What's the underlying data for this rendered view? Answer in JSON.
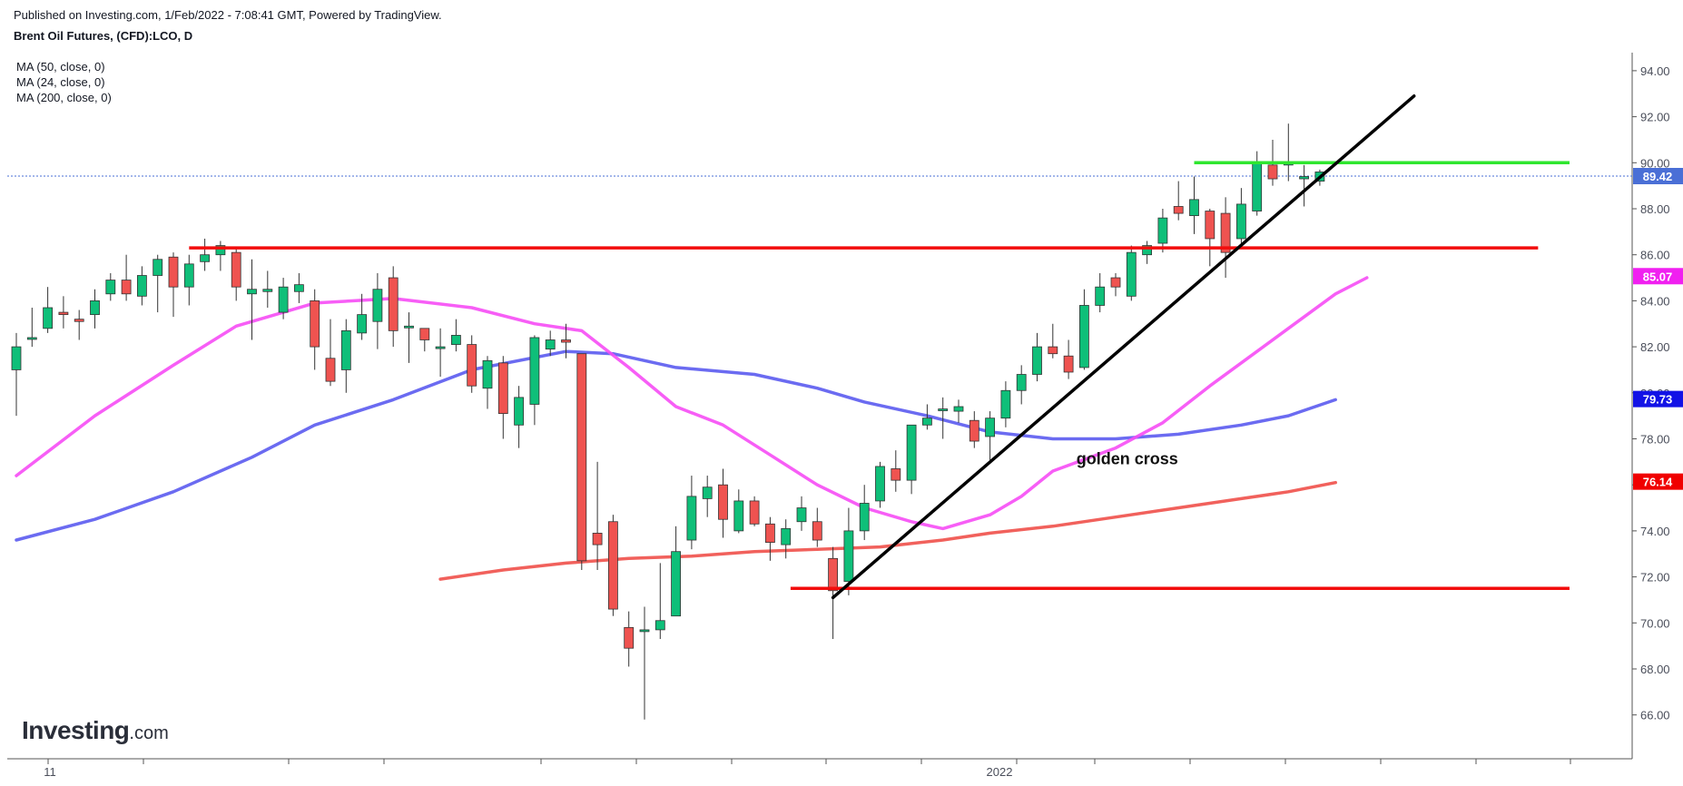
{
  "header": {
    "published": "Published on Investing.com, 1/Feb/2022 - 7:08:41 GMT, Powered by TradingView.",
    "symbol": "Brent Oil Futures, (CFD):LCO, D"
  },
  "indicators": [
    "MA (50, close, 0)",
    "MA (24, close, 0)",
    "MA (200, close, 0)"
  ],
  "logo": {
    "main": "Investing",
    "suffix": ".com"
  },
  "colors": {
    "up": "#0fbf79",
    "down": "#ef5350",
    "wick": "#333333",
    "ma50": "#5b5bef",
    "ma24": "#f64df5",
    "ma200": "#f0504a",
    "support_resistance": "#f20d0d",
    "top_level": "#2ee62e",
    "trendline": "#000000",
    "price_line": "#4a6fd6"
  },
  "chart_data": {
    "type": "candlestick",
    "title": "Brent Oil Futures, (CFD):LCO, D",
    "x_tick_labels": [
      "11",
      "2022"
    ],
    "y_axis": {
      "range": [
        64.4,
        95.2
      ],
      "ticks": [
        "94.00",
        "92.00",
        "90.00",
        "88.00",
        "86.00",
        "84.00",
        "82.00",
        "80.00",
        "78.00",
        "76.00",
        "74.00",
        "72.00",
        "70.00",
        "68.00",
        "66.00"
      ]
    },
    "grid": false,
    "candles": [
      {
        "o": 81.0,
        "h": 82.6,
        "l": 79.0,
        "c": 82.0
      },
      {
        "o": 82.4,
        "h": 83.7,
        "l": 82.0,
        "c": 82.4
      },
      {
        "o": 82.8,
        "h": 84.6,
        "l": 82.6,
        "c": 83.7
      },
      {
        "o": 83.5,
        "h": 84.2,
        "l": 82.8,
        "c": 83.4
      },
      {
        "o": 83.2,
        "h": 83.6,
        "l": 82.3,
        "c": 83.1
      },
      {
        "o": 83.4,
        "h": 84.5,
        "l": 82.8,
        "c": 84.0
      },
      {
        "o": 84.3,
        "h": 85.2,
        "l": 84.0,
        "c": 84.9
      },
      {
        "o": 84.9,
        "h": 86.0,
        "l": 84.0,
        "c": 84.3
      },
      {
        "o": 84.2,
        "h": 85.5,
        "l": 83.8,
        "c": 85.1
      },
      {
        "o": 85.1,
        "h": 86.0,
        "l": 83.5,
        "c": 85.8
      },
      {
        "o": 85.9,
        "h": 86.1,
        "l": 83.3,
        "c": 84.6
      },
      {
        "o": 84.6,
        "h": 86.0,
        "l": 83.8,
        "c": 85.6
      },
      {
        "o": 85.7,
        "h": 86.7,
        "l": 85.3,
        "c": 86.0
      },
      {
        "o": 86.0,
        "h": 86.6,
        "l": 85.3,
        "c": 86.4
      },
      {
        "o": 86.1,
        "h": 86.3,
        "l": 84.0,
        "c": 84.6
      },
      {
        "o": 84.3,
        "h": 85.8,
        "l": 82.3,
        "c": 84.5
      },
      {
        "o": 84.4,
        "h": 85.3,
        "l": 83.7,
        "c": 84.5
      },
      {
        "o": 83.5,
        "h": 85.0,
        "l": 83.2,
        "c": 84.6
      },
      {
        "o": 84.4,
        "h": 85.2,
        "l": 83.9,
        "c": 84.7
      },
      {
        "o": 84.0,
        "h": 84.5,
        "l": 81.0,
        "c": 82.0
      },
      {
        "o": 81.5,
        "h": 83.2,
        "l": 80.3,
        "c": 80.5
      },
      {
        "o": 81.0,
        "h": 83.2,
        "l": 80.0,
        "c": 82.7
      },
      {
        "o": 82.6,
        "h": 84.3,
        "l": 82.3,
        "c": 83.4
      },
      {
        "o": 83.1,
        "h": 85.2,
        "l": 81.9,
        "c": 84.5
      },
      {
        "o": 85.0,
        "h": 85.5,
        "l": 82.0,
        "c": 82.7
      },
      {
        "o": 82.9,
        "h": 83.5,
        "l": 81.3,
        "c": 82.9
      },
      {
        "o": 82.8,
        "h": 82.8,
        "l": 81.8,
        "c": 82.3
      },
      {
        "o": 82.0,
        "h": 82.8,
        "l": 80.7,
        "c": 82.0
      },
      {
        "o": 82.1,
        "h": 83.2,
        "l": 81.8,
        "c": 82.5
      },
      {
        "o": 82.1,
        "h": 82.5,
        "l": 80.0,
        "c": 80.3
      },
      {
        "o": 80.2,
        "h": 81.6,
        "l": 79.3,
        "c": 81.4
      },
      {
        "o": 81.3,
        "h": 81.6,
        "l": 78.0,
        "c": 79.1
      },
      {
        "o": 78.6,
        "h": 80.3,
        "l": 77.6,
        "c": 79.8
      },
      {
        "o": 79.5,
        "h": 82.5,
        "l": 78.6,
        "c": 82.4
      },
      {
        "o": 81.9,
        "h": 82.7,
        "l": 81.6,
        "c": 82.3
      },
      {
        "o": 82.3,
        "h": 83.0,
        "l": 81.5,
        "c": 82.2
      },
      {
        "o": 81.7,
        "h": 81.7,
        "l": 72.3,
        "c": 72.7
      },
      {
        "o": 73.9,
        "h": 77.0,
        "l": 72.3,
        "c": 73.4
      },
      {
        "o": 74.4,
        "h": 74.7,
        "l": 70.3,
        "c": 70.6
      },
      {
        "o": 69.8,
        "h": 70.5,
        "l": 68.1,
        "c": 68.9
      },
      {
        "o": 69.7,
        "h": 70.7,
        "l": 65.8,
        "c": 69.7
      },
      {
        "o": 69.7,
        "h": 72.6,
        "l": 69.3,
        "c": 70.1
      },
      {
        "o": 70.3,
        "h": 74.2,
        "l": 70.3,
        "c": 73.1
      },
      {
        "o": 73.6,
        "h": 76.4,
        "l": 73.2,
        "c": 75.5
      },
      {
        "o": 75.4,
        "h": 76.4,
        "l": 74.6,
        "c": 75.9
      },
      {
        "o": 76.0,
        "h": 76.7,
        "l": 73.7,
        "c": 74.5
      },
      {
        "o": 74.0,
        "h": 75.8,
        "l": 73.9,
        "c": 75.3
      },
      {
        "o": 75.3,
        "h": 75.5,
        "l": 74.2,
        "c": 74.3
      },
      {
        "o": 74.3,
        "h": 74.6,
        "l": 72.7,
        "c": 73.5
      },
      {
        "o": 73.4,
        "h": 74.5,
        "l": 72.8,
        "c": 74.1
      },
      {
        "o": 74.4,
        "h": 75.5,
        "l": 74.0,
        "c": 75.0
      },
      {
        "o": 74.4,
        "h": 75.0,
        "l": 73.3,
        "c": 73.6
      },
      {
        "o": 72.8,
        "h": 73.3,
        "l": 69.3,
        "c": 71.4
      },
      {
        "o": 71.8,
        "h": 75.0,
        "l": 71.2,
        "c": 74.0
      },
      {
        "o": 74.0,
        "h": 76.0,
        "l": 73.6,
        "c": 75.2
      },
      {
        "o": 75.3,
        "h": 77.0,
        "l": 75.0,
        "c": 76.8
      },
      {
        "o": 76.7,
        "h": 77.5,
        "l": 75.7,
        "c": 76.2
      },
      {
        "o": 76.2,
        "h": 78.6,
        "l": 75.6,
        "c": 78.6
      },
      {
        "o": 78.6,
        "h": 79.5,
        "l": 78.4,
        "c": 78.9
      },
      {
        "o": 79.3,
        "h": 79.8,
        "l": 78.0,
        "c": 79.3
      },
      {
        "o": 79.2,
        "h": 79.7,
        "l": 78.7,
        "c": 79.4
      },
      {
        "o": 78.8,
        "h": 79.2,
        "l": 77.6,
        "c": 77.9
      },
      {
        "o": 78.1,
        "h": 79.2,
        "l": 77.0,
        "c": 78.9
      },
      {
        "o": 78.9,
        "h": 80.5,
        "l": 78.5,
        "c": 80.1
      },
      {
        "o": 80.1,
        "h": 81.2,
        "l": 79.5,
        "c": 80.8
      },
      {
        "o": 80.8,
        "h": 82.6,
        "l": 80.5,
        "c": 82.0
      },
      {
        "o": 82.0,
        "h": 83.0,
        "l": 81.5,
        "c": 81.7
      },
      {
        "o": 81.6,
        "h": 82.3,
        "l": 80.6,
        "c": 80.9
      },
      {
        "o": 81.1,
        "h": 84.5,
        "l": 81.0,
        "c": 83.8
      },
      {
        "o": 83.8,
        "h": 85.2,
        "l": 83.5,
        "c": 84.6
      },
      {
        "o": 85.0,
        "h": 85.2,
        "l": 84.2,
        "c": 84.6
      },
      {
        "o": 84.2,
        "h": 86.4,
        "l": 84.0,
        "c": 86.1
      },
      {
        "o": 86.0,
        "h": 86.6,
        "l": 85.6,
        "c": 86.4
      },
      {
        "o": 86.5,
        "h": 88.0,
        "l": 86.1,
        "c": 87.6
      },
      {
        "o": 88.1,
        "h": 89.2,
        "l": 87.5,
        "c": 87.8
      },
      {
        "o": 87.7,
        "h": 89.4,
        "l": 86.9,
        "c": 88.4
      },
      {
        "o": 87.9,
        "h": 88.0,
        "l": 85.5,
        "c": 86.7
      },
      {
        "o": 87.8,
        "h": 88.5,
        "l": 85.0,
        "c": 86.1
      },
      {
        "o": 86.7,
        "h": 88.9,
        "l": 86.5,
        "c": 88.2
      },
      {
        "o": 87.9,
        "h": 90.5,
        "l": 87.7,
        "c": 90.0
      },
      {
        "o": 89.9,
        "h": 91.0,
        "l": 89.0,
        "c": 89.3
      },
      {
        "o": 89.9,
        "h": 91.7,
        "l": 89.2,
        "c": 90.0
      },
      {
        "o": 89.3,
        "h": 89.9,
        "l": 88.1,
        "c": 89.4
      },
      {
        "o": 89.2,
        "h": 89.7,
        "l": 89.0,
        "c": 89.6
      }
    ],
    "series": [
      {
        "name": "MA (50, close, 0)",
        "color": "#5b5bef",
        "points": [
          [
            0,
            73.6
          ],
          [
            5,
            74.5
          ],
          [
            10,
            75.7
          ],
          [
            15,
            77.2
          ],
          [
            19,
            78.6
          ],
          [
            24,
            79.7
          ],
          [
            29,
            81.0
          ],
          [
            35,
            81.8
          ],
          [
            38,
            81.7
          ],
          [
            42,
            81.1
          ],
          [
            47,
            80.8
          ],
          [
            51,
            80.2
          ],
          [
            54,
            79.6
          ],
          [
            58,
            79.0
          ],
          [
            62,
            78.3
          ],
          [
            66,
            78.0
          ],
          [
            70,
            78.0
          ],
          [
            74,
            78.2
          ],
          [
            78,
            78.6
          ],
          [
            81,
            79.0
          ],
          [
            84,
            79.7
          ]
        ]
      },
      {
        "name": "MA (24, close, 0)",
        "color": "#f64df5",
        "points": [
          [
            0,
            76.4
          ],
          [
            5,
            79.0
          ],
          [
            10,
            81.2
          ],
          [
            14,
            82.9
          ],
          [
            19,
            83.9
          ],
          [
            24,
            84.1
          ],
          [
            29,
            83.7
          ],
          [
            33,
            83.0
          ],
          [
            36,
            82.7
          ],
          [
            39,
            81.1
          ],
          [
            42,
            79.4
          ],
          [
            45,
            78.6
          ],
          [
            48,
            77.3
          ],
          [
            51,
            76.0
          ],
          [
            54,
            75.0
          ],
          [
            57,
            74.4
          ],
          [
            59,
            74.1
          ],
          [
            62,
            74.7
          ],
          [
            64,
            75.5
          ],
          [
            66,
            76.6
          ],
          [
            68,
            77.1
          ],
          [
            70,
            77.6
          ],
          [
            73,
            78.7
          ],
          [
            76,
            80.3
          ],
          [
            79,
            81.8
          ],
          [
            81,
            82.8
          ],
          [
            84,
            84.3
          ],
          [
            86,
            85.0
          ]
        ]
      },
      {
        "name": "MA (200, close, 0)",
        "color": "#f0504a",
        "points": [
          [
            27,
            71.9
          ],
          [
            31,
            72.3
          ],
          [
            35,
            72.6
          ],
          [
            39,
            72.8
          ],
          [
            43,
            72.9
          ],
          [
            47,
            73.1
          ],
          [
            51,
            73.2
          ],
          [
            55,
            73.3
          ],
          [
            59,
            73.6
          ],
          [
            62,
            73.9
          ],
          [
            66,
            74.2
          ],
          [
            70,
            74.6
          ],
          [
            74,
            75.0
          ],
          [
            78,
            75.4
          ],
          [
            81,
            75.7
          ],
          [
            84,
            76.1
          ]
        ]
      }
    ],
    "level_lines": [
      {
        "from": 11,
        "to": 96.9,
        "price": 86.3,
        "color": "#f20d0d"
      },
      {
        "from": 49.3,
        "to": 98.9,
        "price": 71.5,
        "color": "#f20d0d"
      },
      {
        "from": 75,
        "to": 98.9,
        "price": 90.0,
        "color": "#2ee62e"
      }
    ],
    "trendline": {
      "from": [
        52,
        71.1
      ],
      "to": [
        89,
        92.9
      ],
      "color": "#000000"
    },
    "current_price": 89.42,
    "last_values": [
      {
        "label": "89.42",
        "price": 89.42,
        "bg": "#4a6fd6"
      },
      {
        "label": "85.07",
        "price": 85.07,
        "bg": "#f020f0"
      },
      {
        "label": "79.73",
        "price": 79.73,
        "bg": "#1212e6"
      },
      {
        "label": "76.14",
        "price": 76.14,
        "bg": "#f00000"
      }
    ],
    "annotations": [
      {
        "text": "golden cross",
        "bar": 67.5,
        "price": 76.9
      }
    ]
  }
}
